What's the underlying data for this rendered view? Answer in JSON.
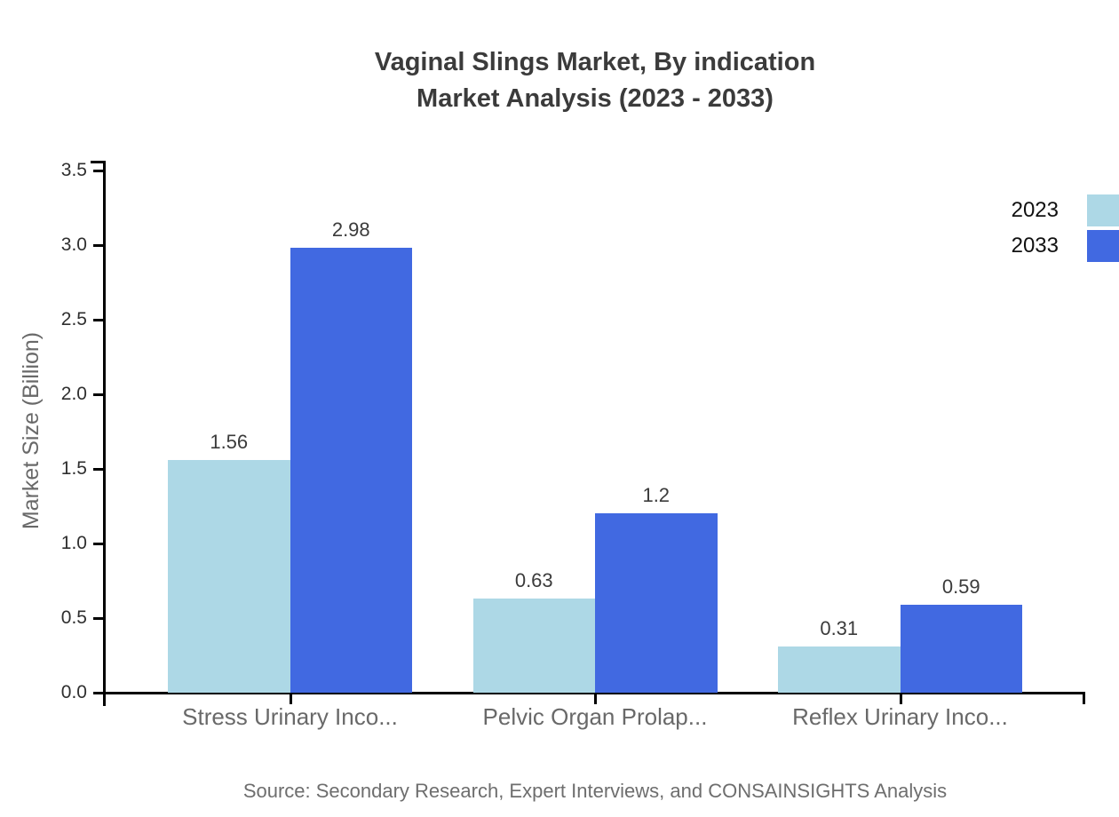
{
  "title": {
    "line1": "Vaginal Slings Market, By indication",
    "line2": "Market Analysis (2023 - 2033)"
  },
  "source": "Source: Secondary Research, Expert Interviews, and CONSAINSIGHTS Analysis",
  "chart_data": {
    "type": "bar",
    "title": "Vaginal Slings Market, By indication Market Analysis (2023 - 2033)",
    "categories": [
      "Stress Urinary Inco...",
      "Pelvic Organ Prolap...",
      "Reflex Urinary Inco..."
    ],
    "series": [
      {
        "name": "2023",
        "color": "#ADD8E6",
        "values": [
          1.56,
          0.63,
          0.31
        ]
      },
      {
        "name": "2033",
        "color": "#4169E1",
        "values": [
          2.98,
          1.2,
          0.59
        ]
      }
    ],
    "xlabel": "",
    "ylabel": "Market Size (Billion)",
    "ylim": [
      0,
      3.5
    ],
    "ytick_step": 0.5,
    "ytick_labels": [
      "0.0",
      "0.5",
      "1.0",
      "1.5",
      "2.0",
      "2.5",
      "3.0",
      "3.5"
    ],
    "value_labels": [
      "1.56",
      "0.63",
      "0.31",
      "2.98",
      "1.2",
      "0.59"
    ],
    "grid": false,
    "legend_position": "top-right",
    "axis_color": "#000000"
  }
}
